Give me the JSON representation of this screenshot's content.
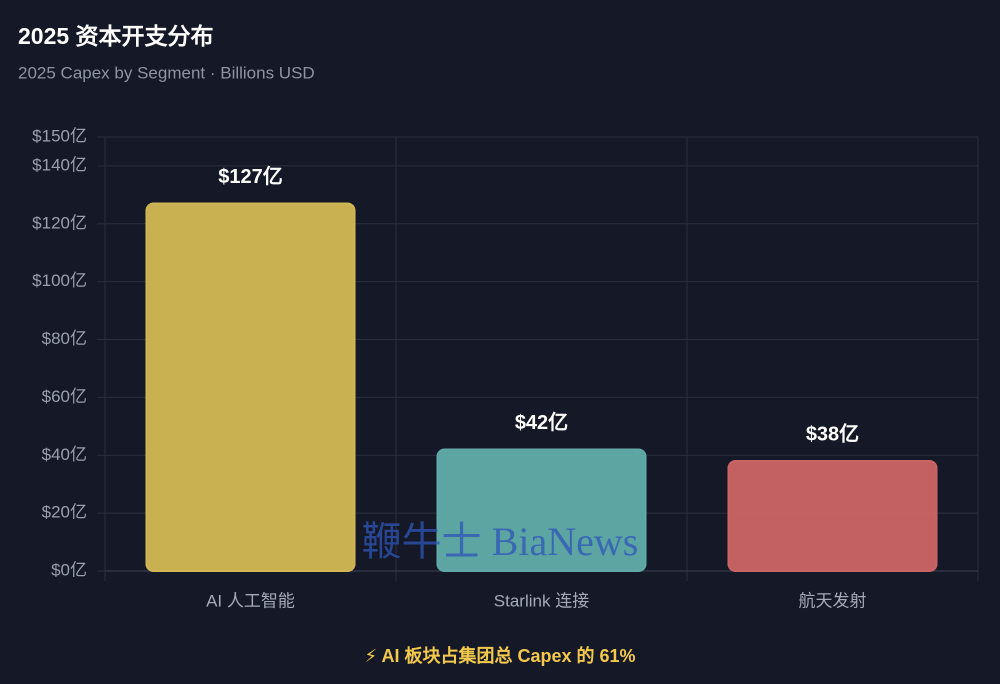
{
  "chart_data": {
    "type": "bar",
    "title": "2025 资本开支分布",
    "subtitle": "2025 Capex by Segment · Billions USD",
    "categories": [
      "AI 人工智能",
      "Starlink 连接",
      "航天发射"
    ],
    "values": [
      127,
      42,
      38
    ],
    "value_labels": [
      "$127亿",
      "$42亿",
      "$38亿"
    ],
    "colors": [
      "#cfb653",
      "#5faaa6",
      "#c96464"
    ],
    "ylim": [
      0,
      150
    ],
    "yticks": [
      {
        "value": 0,
        "label": "$0亿"
      },
      {
        "value": 20,
        "label": "$20亿"
      },
      {
        "value": 40,
        "label": "$40亿"
      },
      {
        "value": 60,
        "label": "$60亿"
      },
      {
        "value": 80,
        "label": "$80亿"
      },
      {
        "value": 100,
        "label": "$100亿"
      },
      {
        "value": 120,
        "label": "$120亿"
      },
      {
        "value": 140,
        "label": "$140亿"
      },
      {
        "value": 150,
        "label": "$150亿"
      }
    ],
    "grid": true,
    "note": "⚡ AI 板块占集团总 Capex 的 61%",
    "watermark": "鞭牛士 BiaNews"
  }
}
